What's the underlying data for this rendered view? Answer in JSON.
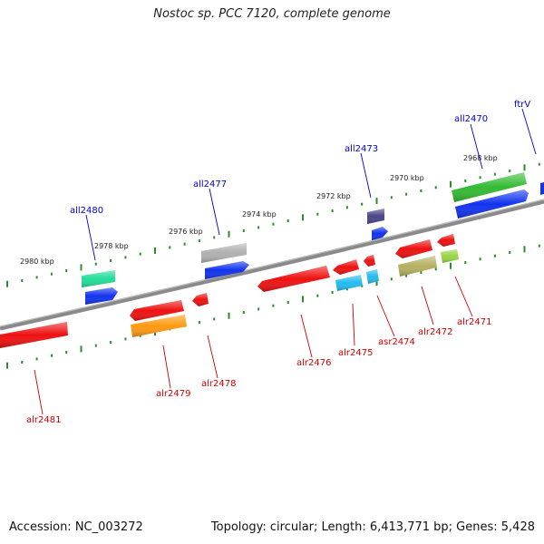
{
  "title": "Nostoc sp. PCC 7120, complete genome",
  "footer": {
    "accession": "Accession: NC_003272",
    "summary": "Topology: circular; Length: 6,413,771 bp; Genes: 5,428"
  },
  "colors": {
    "backbone": "#808080",
    "tick": "#2e8b2e",
    "forward_label": "#0000cc",
    "reverse_label": "#cc0000"
  },
  "scale_labels": [
    "2980 kbp",
    "2978 kbp",
    "2976 kbp",
    "2974 kbp",
    "2972 kbp",
    "2970 kbp",
    "2968 kbp"
  ],
  "genes": [
    {
      "id": "alr2481",
      "strand": "reverse",
      "color": "#ee1111"
    },
    {
      "id": "all2480",
      "strand": "forward",
      "color": "#22dd99"
    },
    {
      "id": "alr2479",
      "strand": "reverse",
      "color": "#ee1111"
    },
    {
      "id": "alr2478",
      "strand": "reverse",
      "color": "#ee1111"
    },
    {
      "id": "all2477",
      "strand": "forward",
      "color": "#b0b0b0"
    },
    {
      "id": "alr2476",
      "strand": "reverse",
      "color": "#ee1111"
    },
    {
      "id": "alr2475",
      "strand": "reverse",
      "color": "#22bbee"
    },
    {
      "id": "asr2474",
      "strand": "reverse",
      "color": "#ee1111"
    },
    {
      "id": "all2473",
      "strand": "forward",
      "color": "#4a4488"
    },
    {
      "id": "alr2472",
      "strand": "reverse",
      "color": "#ee1111"
    },
    {
      "id": "alr2471",
      "strand": "reverse",
      "color": "#ee1111"
    },
    {
      "id": "all2470",
      "strand": "forward",
      "color": "#33bb33"
    },
    {
      "id": "ftrV",
      "strand": "forward",
      "color": "#1133ee"
    }
  ]
}
